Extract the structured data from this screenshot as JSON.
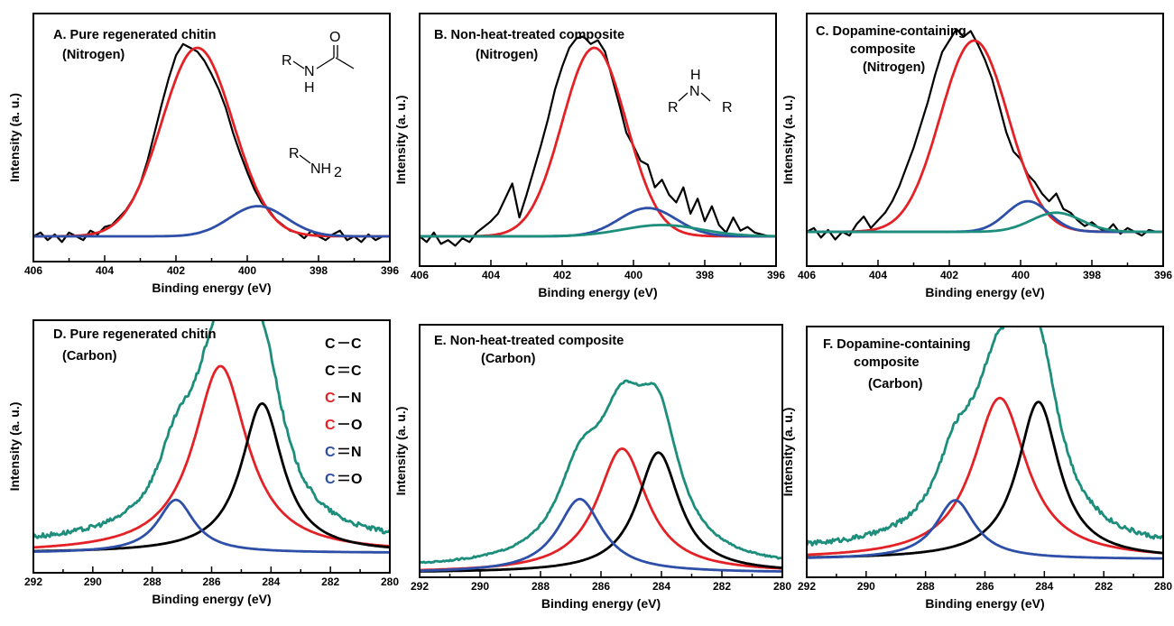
{
  "colors": {
    "black": "#000000",
    "red": "#e32227",
    "blue": "#2e4fa8",
    "teal": "#1d8e7c",
    "frame": "#000000"
  },
  "structures": {
    "amide": {
      "R": "R",
      "N": "N",
      "H": "H",
      "O": "O"
    },
    "amine": {
      "R": "R",
      "NH": "NH",
      "sub": "2"
    },
    "secondary_amine": {
      "H": "H",
      "N": "N",
      "R1": "R",
      "R2": "R"
    }
  },
  "legend": [
    {
      "a": "C",
      "bond": "single",
      "b": "C",
      "color": "#000000"
    },
    {
      "a": "C",
      "bond": "double",
      "b": "C",
      "color": "#000000"
    },
    {
      "a": "C",
      "bond": "single",
      "b": "N",
      "color": "#e32227"
    },
    {
      "a": "C",
      "bond": "single",
      "b": "O",
      "color": "#e32227"
    },
    {
      "a": "C",
      "bond": "double",
      "b": "N",
      "color": "#2e4fa8"
    },
    {
      "a": "C",
      "bond": "double",
      "b": "O",
      "color": "#2e4fa8"
    }
  ],
  "chart_data": [
    {
      "id": "A",
      "type": "line",
      "title": [
        "A. Pure regenerated chitin",
        "(Nitrogen)"
      ],
      "xlabel": "Binding energy (eV)",
      "ylabel": "Intensity (a. u.)",
      "xlim": [
        406,
        396
      ],
      "xticks": [
        406,
        404,
        402,
        400,
        398,
        396
      ],
      "xtick_labels": [
        "406",
        "404",
        "402",
        "400",
        "398",
        "396"
      ],
      "series": [
        {
          "color": "#000000",
          "kind": "raw",
          "x": [
            406.0,
            405.8,
            405.6,
            405.4,
            405.2,
            405.0,
            404.8,
            404.6,
            404.4,
            404.2,
            404.0,
            403.8,
            403.6,
            403.4,
            403.2,
            403.0,
            402.8,
            402.6,
            402.4,
            402.2,
            402.0,
            401.8,
            401.6,
            401.4,
            401.2,
            401.0,
            400.8,
            400.6,
            400.4,
            400.2,
            400.0,
            399.8,
            399.6,
            399.4,
            399.2,
            399.0,
            398.8,
            398.6,
            398.4,
            398.2,
            398.0,
            397.8,
            397.6,
            397.4,
            397.2,
            397.0,
            396.8,
            396.6,
            396.4,
            396.2,
            396.0
          ],
          "y": [
            0.0,
            0.02,
            -0.02,
            0.01,
            -0.03,
            0.02,
            0.0,
            -0.02,
            0.03,
            0.01,
            0.05,
            0.06,
            0.1,
            0.14,
            0.2,
            0.28,
            0.4,
            0.55,
            0.7,
            0.84,
            0.96,
            1.02,
            1.0,
            0.98,
            0.93,
            0.86,
            0.78,
            0.68,
            0.55,
            0.44,
            0.34,
            0.25,
            0.18,
            0.14,
            0.09,
            0.06,
            0.03,
            0.02,
            -0.01,
            0.03,
            0.0,
            -0.02,
            0.01,
            0.03,
            -0.02,
            0.0,
            -0.03,
            0.01,
            -0.02,
            0.0,
            0.0
          ]
        },
        {
          "color": "#e32227",
          "kind": "gauss",
          "center": 401.4,
          "height": 1.0,
          "width": 1.0
        },
        {
          "color": "#2e4fa8",
          "kind": "gauss",
          "center": 399.7,
          "height": 0.16,
          "width": 0.8
        }
      ],
      "ylim": [
        -0.15,
        1.12
      ]
    },
    {
      "id": "B",
      "type": "line",
      "title": [
        "B. Non-heat-treated composite",
        "(Nitrogen)"
      ],
      "xlabel": "Binding energy (eV)",
      "ylabel": "Intensity (a. u.)",
      "xlim": [
        406,
        396
      ],
      "xticks": [
        406,
        404,
        402,
        400,
        398,
        396
      ],
      "xtick_labels": [
        "406",
        "404",
        "402",
        "400",
        "398",
        "396"
      ],
      "series": [
        {
          "color": "#000000",
          "kind": "raw",
          "x": [
            406.0,
            405.8,
            405.6,
            405.4,
            405.2,
            405.0,
            404.8,
            404.6,
            404.4,
            404.2,
            404.0,
            403.8,
            403.6,
            403.4,
            403.2,
            403.0,
            402.8,
            402.6,
            402.4,
            402.2,
            402.0,
            401.8,
            401.6,
            401.4,
            401.2,
            401.0,
            400.8,
            400.6,
            400.4,
            400.2,
            400.0,
            399.8,
            399.6,
            399.4,
            399.2,
            399.0,
            398.8,
            398.6,
            398.4,
            398.2,
            398.0,
            397.8,
            397.6,
            397.4,
            397.2,
            397.0,
            396.8,
            396.6,
            396.4,
            396.2,
            396.0
          ],
          "y": [
            0.0,
            -0.03,
            0.02,
            -0.04,
            -0.02,
            -0.05,
            -0.01,
            -0.03,
            0.02,
            0.05,
            0.08,
            0.12,
            0.2,
            0.28,
            0.1,
            0.22,
            0.35,
            0.48,
            0.62,
            0.78,
            0.9,
            1.0,
            1.05,
            1.06,
            1.02,
            1.04,
            0.98,
            0.84,
            0.7,
            0.55,
            0.48,
            0.4,
            0.38,
            0.26,
            0.3,
            0.22,
            0.18,
            0.26,
            0.12,
            0.2,
            0.08,
            0.16,
            0.06,
            0.02,
            0.1,
            0.03,
            0.05,
            0.02,
            0.01,
            0.0,
            0.0
          ]
        },
        {
          "color": "#e32227",
          "kind": "gauss",
          "center": 401.1,
          "height": 1.0,
          "width": 0.9
        },
        {
          "color": "#2e4fa8",
          "kind": "gauss",
          "center": 399.6,
          "height": 0.15,
          "width": 0.8
        },
        {
          "color": "#1d8e7c",
          "kind": "gauss",
          "center": 399.2,
          "height": 0.06,
          "width": 1.1
        }
      ],
      "ylim": [
        -0.15,
        1.12
      ]
    },
    {
      "id": "C",
      "type": "line",
      "title": [
        "C. Dopamine-containing",
        "composite",
        "(Nitrogen)"
      ],
      "xlabel": "Binding energy (eV)",
      "ylabel": "Intensity (a. u.)",
      "xlim": [
        406,
        396
      ],
      "xticks": [
        406,
        404,
        402,
        400,
        398,
        396
      ],
      "xtick_labels": [
        "406",
        "404",
        "402",
        "400",
        "398",
        "396"
      ],
      "series": [
        {
          "color": "#000000",
          "kind": "raw",
          "x": [
            406.0,
            405.8,
            405.6,
            405.4,
            405.2,
            405.0,
            404.8,
            404.6,
            404.4,
            404.2,
            404.0,
            403.8,
            403.6,
            403.4,
            403.2,
            403.0,
            402.8,
            402.6,
            402.4,
            402.2,
            402.0,
            401.8,
            401.6,
            401.4,
            401.2,
            401.0,
            400.8,
            400.6,
            400.4,
            400.2,
            400.0,
            399.8,
            399.6,
            399.4,
            399.2,
            399.0,
            398.8,
            398.6,
            398.4,
            398.2,
            398.0,
            397.8,
            397.6,
            397.4,
            397.2,
            397.0,
            396.8,
            396.6,
            396.4,
            396.2,
            396.0
          ],
          "y": [
            0.0,
            0.02,
            -0.03,
            0.01,
            -0.04,
            0.0,
            -0.02,
            0.04,
            0.08,
            0.02,
            0.06,
            0.1,
            0.16,
            0.24,
            0.34,
            0.44,
            0.56,
            0.68,
            0.82,
            0.94,
            1.0,
            1.06,
            1.02,
            1.05,
            0.98,
            0.9,
            0.8,
            0.66,
            0.52,
            0.42,
            0.38,
            0.3,
            0.26,
            0.2,
            0.16,
            0.2,
            0.12,
            0.1,
            0.06,
            0.03,
            0.05,
            0.02,
            0.0,
            0.04,
            -0.01,
            0.02,
            0.0,
            -0.02,
            0.01,
            0.0,
            0.0
          ]
        },
        {
          "color": "#e32227",
          "kind": "gauss",
          "center": 401.3,
          "height": 1.0,
          "width": 0.95
        },
        {
          "color": "#2e4fa8",
          "kind": "gauss",
          "center": 399.8,
          "height": 0.16,
          "width": 0.6
        },
        {
          "color": "#1d8e7c",
          "kind": "gauss",
          "center": 399.0,
          "height": 0.1,
          "width": 0.7
        }
      ],
      "ylim": [
        -0.15,
        1.12
      ]
    },
    {
      "id": "D",
      "type": "line",
      "title": [
        "D. Pure regenerated chitin",
        "(Carbon)"
      ],
      "xlabel": "Binding energy (eV)",
      "ylabel": "Intensity (a. u.)",
      "xlim": [
        292,
        280
      ],
      "xticks": [
        292,
        290,
        288,
        286,
        284,
        282,
        280
      ],
      "xtick_labels": [
        "292",
        "290",
        "288",
        "286",
        "284",
        "282",
        "280"
      ],
      "series": [
        {
          "color": "#e32227",
          "kind": "lor",
          "center": 285.7,
          "height": 0.95,
          "width": 1.1
        },
        {
          "color": "#000000",
          "kind": "lor",
          "center": 284.3,
          "height": 0.76,
          "width": 0.85
        },
        {
          "color": "#2e4fa8",
          "kind": "lor",
          "center": 287.2,
          "height": 0.27,
          "width": 0.75
        },
        {
          "color": "#1d8e7c",
          "kind": "envelope",
          "of": [
            0,
            1,
            2
          ],
          "offset": 0.04,
          "noise_amp": 0.012
        }
      ],
      "ylim": [
        -0.05,
        1.25
      ]
    },
    {
      "id": "E",
      "type": "line",
      "title": [
        "E. Non-heat-treated composite",
        "(Carbon)"
      ],
      "xlabel": "Binding energy (eV)",
      "ylabel": "Intensity (a. u.)",
      "xlim": [
        292,
        280
      ],
      "xticks": [
        292,
        290,
        288,
        286,
        284,
        282,
        280
      ],
      "xtick_labels": [
        "292",
        "290",
        "288",
        "286",
        "284",
        "282",
        "280"
      ],
      "series": [
        {
          "color": "#e32227",
          "kind": "lor",
          "center": 285.3,
          "height": 0.64,
          "width": 1.0
        },
        {
          "color": "#000000",
          "kind": "lor",
          "center": 284.1,
          "height": 0.62,
          "width": 0.85
        },
        {
          "color": "#2e4fa8",
          "kind": "lor",
          "center": 286.7,
          "height": 0.38,
          "width": 0.9
        },
        {
          "color": "#1d8e7c",
          "kind": "envelope",
          "of": [
            0,
            1,
            2
          ],
          "offset": 0.02,
          "noise_amp": 0.004
        }
      ],
      "ylim": [
        -0.05,
        1.25
      ]
    },
    {
      "id": "F",
      "type": "line",
      "title": [
        "F. Dopamine-containing",
        "composite",
        "(Carbon)"
      ],
      "xlabel": "Binding energy (eV)",
      "ylabel": "Intensity (a. u.)",
      "xlim": [
        292,
        280
      ],
      "xticks": [
        292,
        290,
        288,
        286,
        284,
        282,
        280
      ],
      "xtick_labels": [
        "292",
        "290",
        "288",
        "286",
        "284",
        "282",
        "280"
      ],
      "series": [
        {
          "color": "#e32227",
          "kind": "lor",
          "center": 285.5,
          "height": 0.82,
          "width": 1.1
        },
        {
          "color": "#000000",
          "kind": "lor",
          "center": 284.2,
          "height": 0.8,
          "width": 0.85
        },
        {
          "color": "#2e4fa8",
          "kind": "lor",
          "center": 287.0,
          "height": 0.3,
          "width": 0.8
        },
        {
          "color": "#1d8e7c",
          "kind": "envelope",
          "of": [
            0,
            1,
            2
          ],
          "offset": 0.04,
          "noise_amp": 0.012
        }
      ],
      "ylim": [
        -0.05,
        1.25
      ]
    }
  ]
}
